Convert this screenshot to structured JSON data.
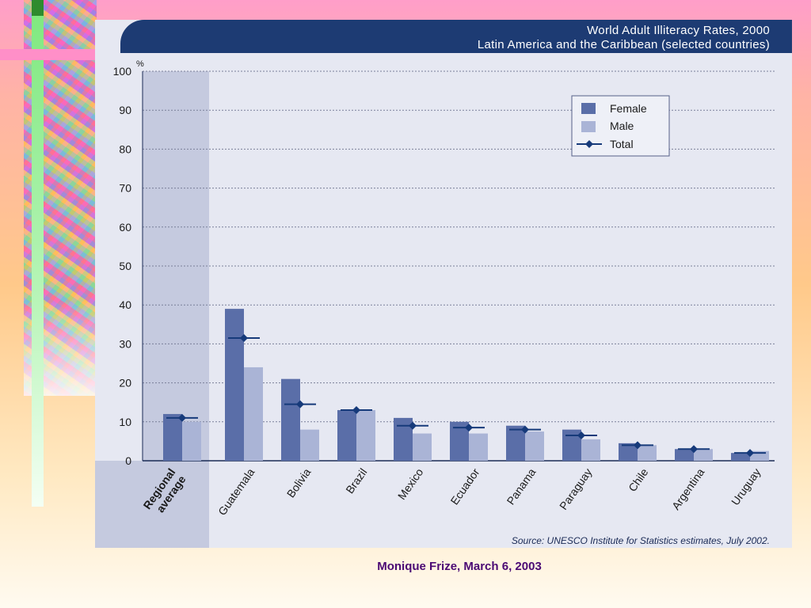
{
  "chart_data": {
    "type": "bar",
    "title": "World Adult Illiteracy Rates, 2000",
    "subtitle": "Latin America and the Caribbean (selected countries)",
    "ylabel": "%",
    "ylim": [
      0,
      100
    ],
    "yticks": [
      "0",
      "10",
      "20",
      "30",
      "40",
      "50",
      "60",
      "70",
      "80",
      "90",
      "100"
    ],
    "grid": true,
    "legend_position": "top-right",
    "categories": [
      "Regional average",
      "Guatemala",
      "Bolivia",
      "Brazil",
      "Mexico",
      "Ecuador",
      "Panama",
      "Paraguay",
      "Chile",
      "Argentina",
      "Uruguay"
    ],
    "series": [
      {
        "name": "Female",
        "type": "bar",
        "color": "#5a6ea8",
        "values": [
          12,
          39,
          21,
          13,
          11,
          10,
          9,
          8,
          4.5,
          3,
          2
        ]
      },
      {
        "name": "Male",
        "type": "bar",
        "color": "#aab4d6",
        "values": [
          10,
          24,
          8,
          13,
          7,
          7,
          7.5,
          5.5,
          4,
          3,
          2.5
        ]
      },
      {
        "name": "Total",
        "type": "line-marker",
        "color": "#163a7a",
        "values": [
          11,
          31.5,
          14.5,
          13,
          9,
          8.5,
          8,
          6.5,
          4,
          3,
          2
        ]
      }
    ],
    "source": "Source: UNESCO Institute for Statistics estimates, July 2002."
  },
  "footer": "Monique Frize, March 6, 2003",
  "colors": {
    "header": "#1d3b73",
    "panel": "#e6e8f2",
    "regional_band": "#c5cadf",
    "footer_text": "#4b0a74"
  }
}
